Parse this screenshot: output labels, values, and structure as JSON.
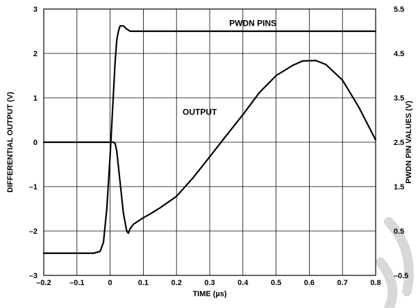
{
  "chart_data": {
    "type": "line",
    "title": "",
    "xlabel": "TIME (µs)",
    "ylabel": "DIFFERENTIAL OUTPUT (V)",
    "ylabel_right": "PWDN PIN VALUES (V)",
    "xlim": [
      -0.2,
      0.8
    ],
    "ylim": [
      -3,
      3
    ],
    "ylim_right": [
      -0.5,
      5.5
    ],
    "grid": true,
    "legend": "none",
    "x_ticks": [
      "–0.2",
      "–0.1",
      "0",
      "0.1",
      "0.2",
      "0.3",
      "0.4",
      "0.5",
      "0.6",
      "0.7",
      "0.8"
    ],
    "y_ticks": [
      "3",
      "2",
      "1",
      "0",
      "–1",
      "–2",
      "–3"
    ],
    "y_ticks_right": [
      "5.5",
      "4.5",
      "3.5",
      "2.5",
      "1.5",
      "0.5",
      "–0.5"
    ],
    "annotations": [
      {
        "text": "PWDN PINS",
        "x": 0.43,
        "y": 2.68
      },
      {
        "text": "OUTPUT",
        "x": 0.27,
        "y": 0.68
      }
    ],
    "series": [
      {
        "axis": "right",
        "x": [
          -0.2,
          -0.05,
          -0.03,
          -0.02,
          -0.01,
          0.0,
          0.01,
          0.015,
          0.02,
          0.025,
          0.03,
          0.04,
          0.05,
          0.06,
          0.08,
          0.1,
          0.3,
          0.5,
          0.8
        ],
        "values": [
          0.0,
          0.0,
          0.04,
          0.25,
          1.0,
          2.2,
          3.6,
          4.3,
          4.8,
          5.0,
          5.12,
          5.12,
          5.05,
          5.0,
          5.0,
          5.0,
          5.0,
          5.0,
          5.0
        ]
      },
      {
        "axis": "left",
        "x": [
          -0.2,
          -0.1,
          0.0,
          0.01,
          0.015,
          0.02,
          0.03,
          0.04,
          0.05,
          0.055,
          0.06,
          0.07,
          0.09,
          0.1,
          0.12,
          0.15,
          0.2,
          0.25,
          0.3,
          0.35,
          0.4,
          0.45,
          0.5,
          0.55,
          0.58,
          0.62,
          0.65,
          0.7,
          0.75,
          0.8
        ],
        "values": [
          0.0,
          0.0,
          0.0,
          0.0,
          -0.03,
          -0.2,
          -0.9,
          -1.6,
          -2.0,
          -2.05,
          -1.95,
          -1.85,
          -1.75,
          -1.7,
          -1.62,
          -1.48,
          -1.22,
          -0.8,
          -0.33,
          0.15,
          0.62,
          1.12,
          1.5,
          1.73,
          1.83,
          1.84,
          1.75,
          1.4,
          0.78,
          0.05
        ]
      }
    ]
  },
  "decoration": {
    "color": "#d8d8d8"
  }
}
